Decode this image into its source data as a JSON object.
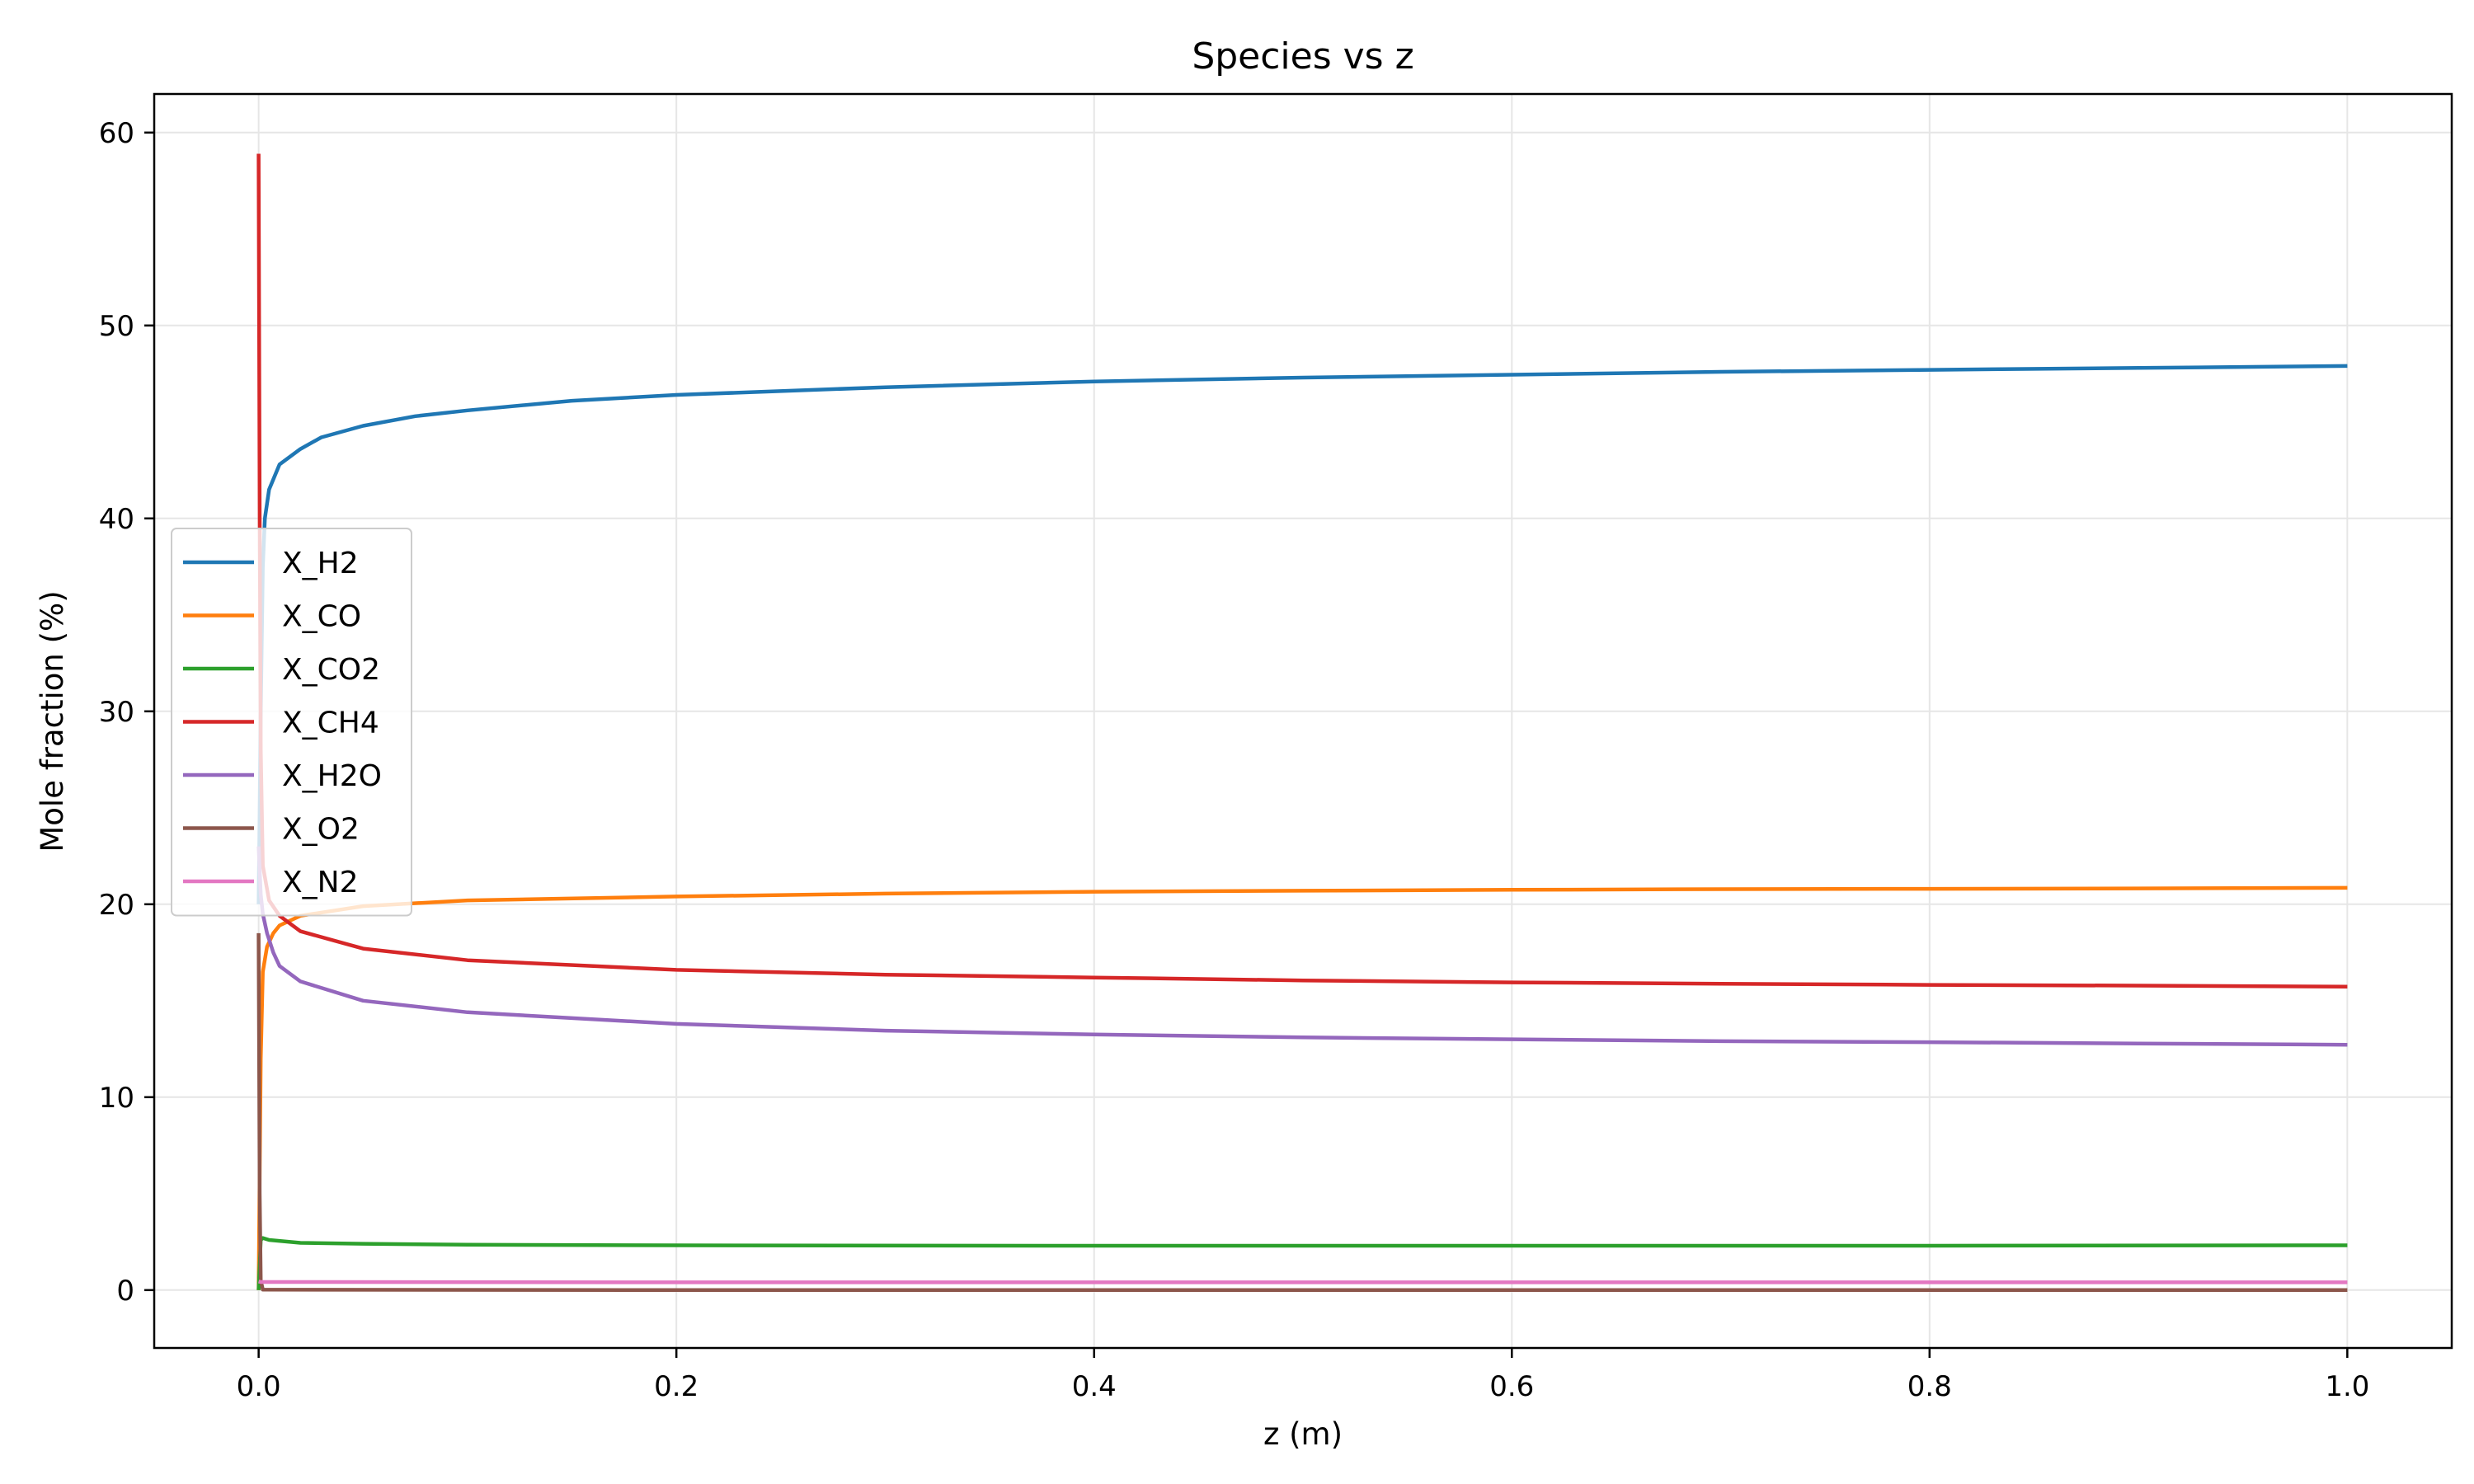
{
  "chart_data": {
    "type": "line",
    "title": "Species vs z",
    "xlabel": "z (m)",
    "ylabel": "Mole fraction (%)",
    "xlim": [
      -0.05,
      1.05
    ],
    "ylim": [
      -3,
      62
    ],
    "xticks": [
      0.0,
      0.2,
      0.4,
      0.6,
      0.8,
      1.0
    ],
    "xtick_labels": [
      "0.0",
      "0.2",
      "0.4",
      "0.6",
      "0.8",
      "1.0"
    ],
    "yticks": [
      0,
      10,
      20,
      30,
      40,
      50,
      60
    ],
    "ytick_labels": [
      "0",
      "10",
      "20",
      "30",
      "40",
      "50",
      "60"
    ],
    "grid": true,
    "legend_position": "center-left",
    "series": [
      {
        "name": "X_H2",
        "color": "#1f77b4",
        "x": [
          0,
          0.001,
          0.002,
          0.003,
          0.005,
          0.01,
          0.02,
          0.03,
          0.05,
          0.075,
          0.1,
          0.15,
          0.2,
          0.3,
          0.4,
          0.5,
          0.6,
          0.7,
          0.8,
          0.9,
          1.0
        ],
        "y": [
          20,
          30,
          37.5,
          40,
          41.5,
          42.8,
          43.6,
          44.2,
          44.8,
          45.3,
          45.6,
          46.1,
          46.4,
          46.8,
          47.1,
          47.3,
          47.45,
          47.6,
          47.7,
          47.8,
          47.9
        ]
      },
      {
        "name": "X_CO",
        "color": "#ff7f0e",
        "x": [
          0,
          0.001,
          0.002,
          0.004,
          0.007,
          0.01,
          0.02,
          0.05,
          0.1,
          0.2,
          0.3,
          0.4,
          0.5,
          0.6,
          0.7,
          0.8,
          0.9,
          1.0
        ],
        "y": [
          0,
          12,
          16.5,
          17.8,
          18.5,
          18.9,
          19.4,
          19.9,
          20.2,
          20.4,
          20.55,
          20.65,
          20.7,
          20.75,
          20.78,
          20.8,
          20.82,
          20.85
        ]
      },
      {
        "name": "X_CO2",
        "color": "#2ca02c",
        "x": [
          0,
          0.001,
          0.002,
          0.005,
          0.02,
          0.05,
          0.1,
          0.2,
          0.4,
          0.6,
          0.8,
          1.0
        ],
        "y": [
          0,
          2.6,
          2.7,
          2.6,
          2.45,
          2.4,
          2.35,
          2.32,
          2.3,
          2.3,
          2.3,
          2.32
        ]
      },
      {
        "name": "X_CH4",
        "color": "#d62728",
        "x": [
          0,
          0.0005,
          0.001,
          0.002,
          0.005,
          0.01,
          0.02,
          0.05,
          0.1,
          0.2,
          0.3,
          0.4,
          0.5,
          0.6,
          0.7,
          0.8,
          0.9,
          1.0
        ],
        "y": [
          58.9,
          40,
          28,
          22,
          20.2,
          19.4,
          18.6,
          17.7,
          17.1,
          16.6,
          16.35,
          16.2,
          16.05,
          15.95,
          15.88,
          15.82,
          15.78,
          15.73
        ]
      },
      {
        "name": "X_H2O",
        "color": "#9467bd",
        "x": [
          0,
          0.001,
          0.002,
          0.004,
          0.007,
          0.01,
          0.02,
          0.05,
          0.1,
          0.2,
          0.3,
          0.4,
          0.5,
          0.6,
          0.7,
          0.8,
          0.9,
          1.0
        ],
        "y": [
          23,
          20.5,
          19.5,
          18.5,
          17.5,
          16.8,
          16,
          15,
          14.4,
          13.8,
          13.45,
          13.25,
          13.1,
          13.0,
          12.9,
          12.85,
          12.78,
          12.72
        ]
      },
      {
        "name": "X_O2",
        "color": "#8c564b",
        "x": [
          0,
          0.0005,
          0.001,
          0.002,
          0.2,
          0.4,
          0.6,
          0.8,
          1.0
        ],
        "y": [
          18.5,
          5,
          0.5,
          0.02,
          0.0,
          0.0,
          0.0,
          0.0,
          0.0
        ]
      },
      {
        "name": "X_N2",
        "color": "#e377c2",
        "x": [
          0,
          0.001,
          0.2,
          0.4,
          0.6,
          0.8,
          1.0
        ],
        "y": [
          0.45,
          0.42,
          0.4,
          0.4,
          0.4,
          0.4,
          0.4
        ]
      }
    ]
  }
}
